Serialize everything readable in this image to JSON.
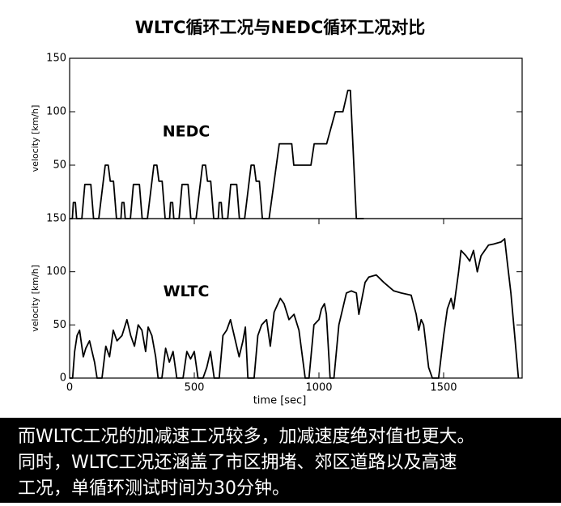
{
  "title": "WLTC循环工况与NEDC循环工况对比",
  "chart_data": [
    {
      "type": "line",
      "annotation": "NEDC",
      "ylabel": "velocity [km/h]",
      "color": "#000000",
      "xlim": [
        0,
        1815
      ],
      "ylim": [
        0,
        150
      ],
      "yticks": [
        50,
        100,
        150
      ],
      "x": [
        0,
        11,
        15,
        23,
        28,
        49,
        61,
        85,
        96,
        117,
        143,
        155,
        163,
        176,
        188,
        195,
        206,
        210,
        218,
        223,
        244,
        256,
        280,
        291,
        312,
        338,
        350,
        358,
        371,
        383,
        390,
        401,
        405,
        413,
        418,
        439,
        451,
        475,
        486,
        507,
        533,
        545,
        553,
        566,
        578,
        585,
        596,
        600,
        608,
        613,
        634,
        646,
        670,
        681,
        702,
        728,
        740,
        748,
        761,
        773,
        800,
        841,
        891,
        899,
        968,
        981,
        1031,
        1066,
        1096,
        1116,
        1126,
        1150,
        1180
      ],
      "values": [
        0,
        0,
        15,
        15,
        0,
        0,
        32,
        32,
        0,
        0,
        50,
        50,
        35,
        35,
        0,
        0,
        0,
        15,
        15,
        0,
        0,
        32,
        32,
        0,
        0,
        50,
        50,
        35,
        35,
        0,
        0,
        0,
        15,
        15,
        0,
        0,
        32,
        32,
        0,
        0,
        50,
        50,
        35,
        35,
        0,
        0,
        0,
        15,
        15,
        0,
        0,
        32,
        32,
        0,
        0,
        50,
        50,
        35,
        35,
        0,
        0,
        70,
        70,
        50,
        50,
        70,
        70,
        100,
        100,
        120,
        120,
        0,
        0
      ]
    },
    {
      "type": "line",
      "annotation": "WLTC",
      "ylabel": "velocity [km/h]",
      "xlabel": "time [sec]",
      "color": "#000000",
      "xlim": [
        0,
        1815
      ],
      "ylim": [
        0,
        150
      ],
      "yticks": [
        0,
        50,
        100,
        150
      ],
      "xticks": [
        0,
        500,
        1000,
        1500
      ],
      "x": [
        0,
        12,
        20,
        30,
        40,
        55,
        65,
        80,
        100,
        110,
        130,
        145,
        160,
        175,
        190,
        210,
        230,
        245,
        260,
        275,
        290,
        305,
        315,
        330,
        345,
        355,
        370,
        385,
        400,
        415,
        430,
        455,
        470,
        485,
        500,
        515,
        535,
        550,
        565,
        580,
        600,
        615,
        630,
        645,
        660,
        680,
        695,
        705,
        715,
        740,
        755,
        770,
        790,
        805,
        820,
        845,
        860,
        880,
        900,
        920,
        945,
        960,
        980,
        1000,
        1010,
        1022,
        1030,
        1045,
        1060,
        1080,
        1100,
        1110,
        1130,
        1150,
        1160,
        1185,
        1200,
        1230,
        1260,
        1300,
        1330,
        1370,
        1390,
        1400,
        1410,
        1420,
        1440,
        1455,
        1480,
        1500,
        1515,
        1530,
        1540,
        1560,
        1570,
        1590,
        1605,
        1620,
        1635,
        1650,
        1680,
        1700,
        1730,
        1745,
        1755,
        1770,
        1785,
        1800
      ],
      "values": [
        0,
        0,
        25,
        40,
        45,
        20,
        28,
        35,
        15,
        0,
        0,
        30,
        20,
        45,
        35,
        40,
        55,
        40,
        30,
        50,
        45,
        25,
        48,
        40,
        20,
        0,
        0,
        28,
        15,
        25,
        0,
        0,
        25,
        18,
        25,
        0,
        0,
        10,
        25,
        0,
        0,
        40,
        45,
        55,
        40,
        20,
        35,
        48,
        0,
        0,
        40,
        50,
        55,
        30,
        62,
        75,
        70,
        55,
        60,
        45,
        0,
        0,
        50,
        55,
        65,
        70,
        60,
        0,
        0,
        50,
        70,
        80,
        82,
        80,
        60,
        90,
        95,
        97,
        90,
        82,
        80,
        78,
        60,
        45,
        55,
        50,
        10,
        0,
        0,
        40,
        65,
        75,
        65,
        100,
        120,
        115,
        110,
        120,
        100,
        115,
        125,
        126,
        128,
        131,
        110,
        80,
        40,
        0
      ]
    }
  ],
  "caption": [
    "而WLTC工况的加减速工况较多，加减速度绝对值也更大。",
    "同时，WLTC工况还涵盖了市区拥堵、郊区道路以及高速",
    "工况，单循环测试时间为30分钟。"
  ]
}
